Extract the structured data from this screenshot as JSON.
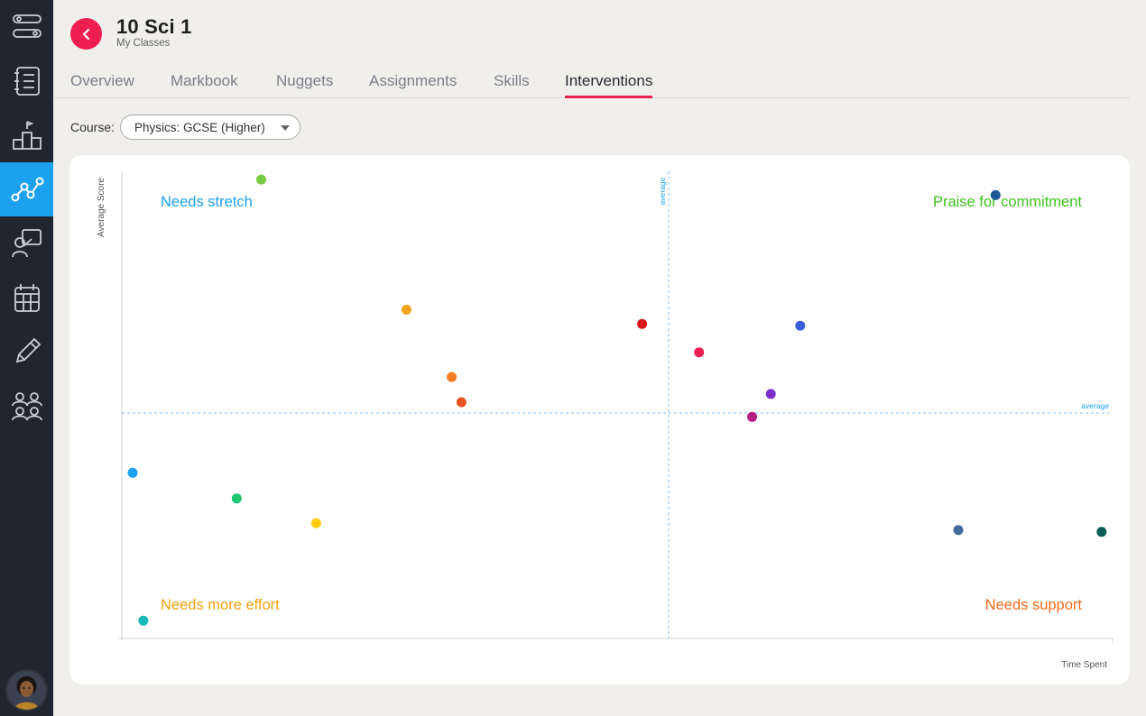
{
  "header": {
    "title": "10 Sci 1",
    "breadcrumb": "My Classes"
  },
  "sidebar": {
    "items": [
      {
        "icon": "flows-icon"
      },
      {
        "icon": "notebook-icon"
      },
      {
        "icon": "podium-icon"
      },
      {
        "icon": "analytics-icon",
        "active": true
      },
      {
        "icon": "teacher-board-icon"
      },
      {
        "icon": "calendar-icon"
      },
      {
        "icon": "pencil-icon"
      },
      {
        "icon": "people-icon"
      }
    ]
  },
  "tabs": [
    {
      "label": "Overview"
    },
    {
      "label": "Markbook"
    },
    {
      "label": "Nuggets"
    },
    {
      "label": "Assignments"
    },
    {
      "label": "Skills"
    },
    {
      "label": "Interventions",
      "active": true
    }
  ],
  "course": {
    "label": "Course:",
    "selected": "Physics: GCSE (Higher)"
  },
  "colors": {
    "accent": "#ef1f52",
    "active_nav": "#1ba1f0",
    "stretch": "#1ba1f0",
    "praise": "#3cc21e",
    "effort": "#f3a20f",
    "support": "#f26a1b"
  },
  "chart_data": {
    "type": "scatter",
    "xlabel": "Time Spent",
    "ylabel": "Average Score",
    "xlim": [
      0,
      1
    ],
    "ylim": [
      0,
      1
    ],
    "average_x": 0.5,
    "average_y": 0.5,
    "average_label": "average",
    "quadrants": {
      "top_left": "Needs stretch",
      "top_right": "Praise for commitment",
      "bottom_left": "Needs more effort",
      "bottom_right": "Needs support"
    },
    "points": [
      {
        "x": 0.142,
        "y": 0.982,
        "color": "#7ac943"
      },
      {
        "x": 0.29,
        "y": 0.698,
        "color": "#f4a11a"
      },
      {
        "x": 0.336,
        "y": 0.551,
        "color": "#f57c20"
      },
      {
        "x": 0.346,
        "y": 0.496,
        "color": "#ea4f1e"
      },
      {
        "x": 0.011,
        "y": 0.342,
        "color": "#1ba1f0"
      },
      {
        "x": 0.117,
        "y": 0.286,
        "color": "#1ec56f"
      },
      {
        "x": 0.198,
        "y": 0.232,
        "color": "#ffcc0f"
      },
      {
        "x": 0.022,
        "y": 0.019,
        "color": "#18b9b9"
      },
      {
        "x": 0.89,
        "y": 0.948,
        "color": "#1f5696"
      },
      {
        "x": 0.53,
        "y": 0.667,
        "color": "#d9161c"
      },
      {
        "x": 0.588,
        "y": 0.605,
        "color": "#ef1f52"
      },
      {
        "x": 0.691,
        "y": 0.663,
        "color": "#3a5fd9"
      },
      {
        "x": 0.661,
        "y": 0.514,
        "color": "#7b2fc9"
      },
      {
        "x": 0.642,
        "y": 0.464,
        "color": "#b41f86"
      },
      {
        "x": 0.852,
        "y": 0.217,
        "color": "#406a97"
      },
      {
        "x": 0.998,
        "y": 0.213,
        "color": "#0b5d55"
      }
    ]
  }
}
